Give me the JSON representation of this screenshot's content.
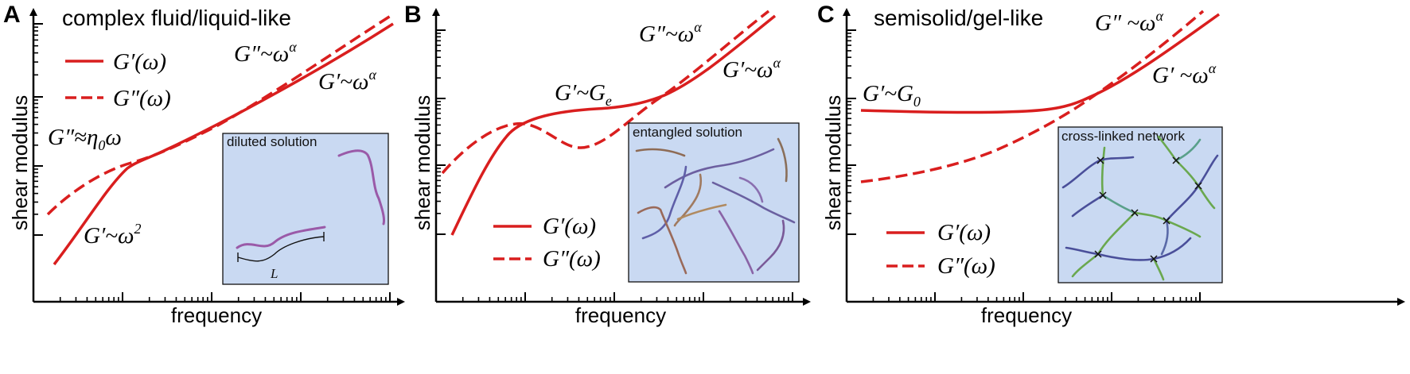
{
  "colors": {
    "curve": "#d91e1e",
    "inset_fill": "#c9d9f2",
    "axis": "#000000",
    "chain_purple": "#9a5aa8",
    "chain_blue": "#4a4f9a",
    "chain_green": "#6aa84f"
  },
  "panels": [
    {
      "letter": "A",
      "title": "complex fluid/liquid-like",
      "xlabel": "frequency",
      "ylabel": "shear modulus",
      "legend": {
        "solid": "G′(ω)",
        "dashed": "G″(ω)"
      },
      "annotations": {
        "low_loss": {
          "base": "G″≈η",
          "sub": "0",
          "tail": "ω"
        },
        "low_storage": {
          "base": "G′~ω",
          "sup": "2"
        },
        "high_loss": {
          "base": "G″~ω",
          "sup": "α"
        },
        "high_storage": {
          "base": "G′~ω",
          "sup": "α"
        }
      },
      "inset": {
        "title": "diluted solution",
        "length_label": "L"
      }
    },
    {
      "letter": "B",
      "title": "",
      "xlabel": "frequency",
      "ylabel": "shear modulus",
      "legend": {
        "solid": "G′(ω)",
        "dashed": "G″(ω)"
      },
      "annotations": {
        "plateau": {
          "base": "G′~G",
          "sub": "e"
        },
        "high_loss": {
          "base": "G″~ω",
          "sup": "α"
        },
        "high_storage": {
          "base": "G′~ω",
          "sup": "α"
        }
      },
      "inset": {
        "title": "entangled solution"
      }
    },
    {
      "letter": "C",
      "title": "semisolid/gel-like",
      "xlabel": "frequency",
      "ylabel": "shear modulus",
      "legend": {
        "solid": "G′(ω)",
        "dashed": "G″(ω)"
      },
      "annotations": {
        "plateau": {
          "base": "G′~G",
          "sub": "0"
        },
        "high_loss": {
          "base": "G″ ~ω",
          "sup": "α"
        },
        "high_storage": {
          "base": "G′ ~ω",
          "sup": "α"
        }
      },
      "inset": {
        "title": "cross-linked network"
      }
    }
  ]
}
